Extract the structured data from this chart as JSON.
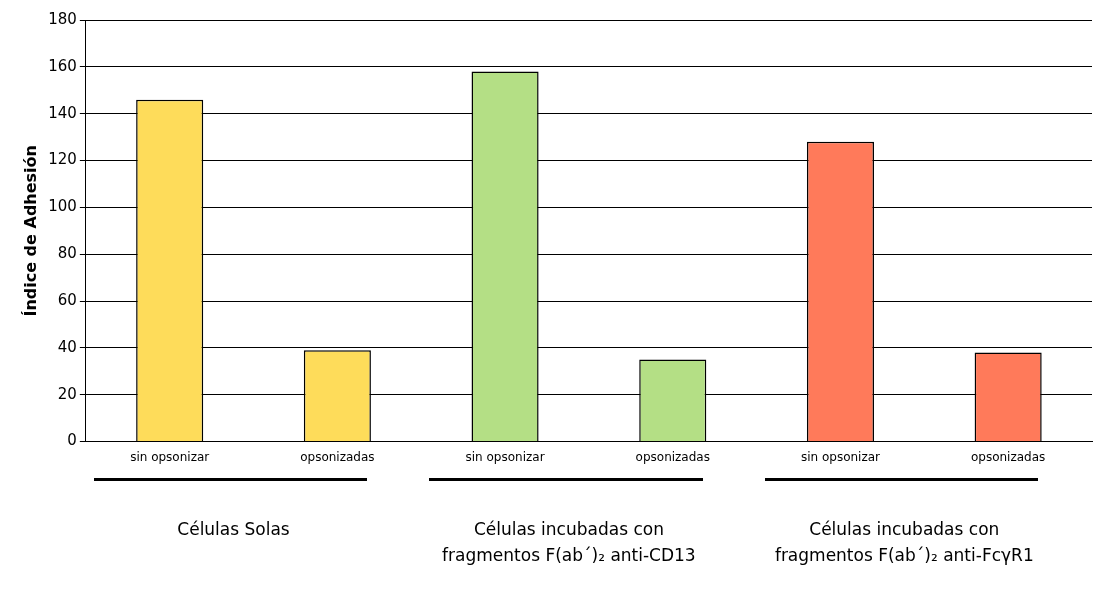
{
  "chart_data": {
    "type": "bar",
    "ylabel": "Índice de Adhesión",
    "categories": [
      "sin opsonizar",
      "opsonizadas",
      "sin opsonizar",
      "opsonizadas",
      "sin opsonizar",
      "opsonizadas"
    ],
    "values": [
      146,
      39,
      158,
      35,
      128,
      38
    ],
    "colors": [
      "#fedc5a",
      "#fedc5a",
      "#b4df85",
      "#b4df85",
      "#ff7a5a",
      "#ff7a5a"
    ],
    "ylim": [
      0,
      180
    ],
    "yticks": [
      0,
      20,
      40,
      60,
      80,
      100,
      120,
      140,
      160,
      180
    ],
    "grid": "y",
    "annotations": [
      "Células Solas",
      "Células incubadas con fragmentos F(ab´)₂ anti-CD13",
      "Células incubadas con fragmentos F(ab´)₂ anti-FcγR1"
    ]
  }
}
